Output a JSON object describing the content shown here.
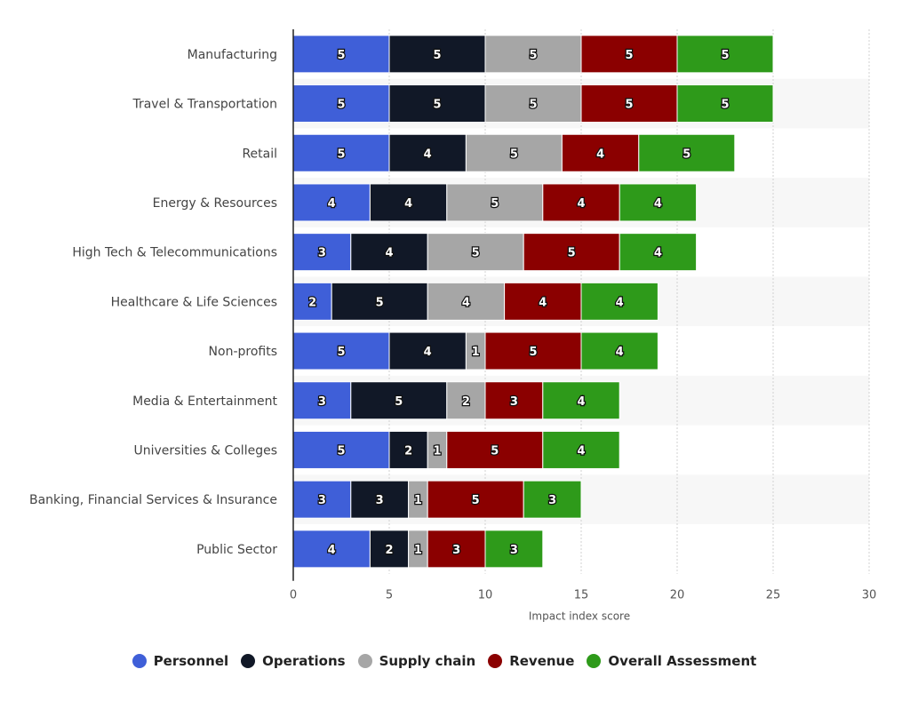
{
  "chart_data": {
    "type": "bar",
    "orientation": "horizontal",
    "stacked": true,
    "title": "",
    "xlabel": "Impact index score",
    "ylabel": "",
    "xlim": [
      0,
      30
    ],
    "xticks": [
      0,
      5,
      10,
      15,
      20,
      25,
      30
    ],
    "grid": true,
    "legend_position": "bottom",
    "categories": [
      "Manufacturing",
      "Travel & Transportation",
      "Retail",
      "Energy & Resources",
      "High Tech & Telecommunications",
      "Healthcare & Life Sciences",
      "Non-profits",
      "Media & Entertainment",
      "Universities & Colleges",
      "Banking, Financial Services & Insurance",
      "Public Sector"
    ],
    "series": [
      {
        "name": "Personnel",
        "color": "#3f5fd8",
        "values": [
          5,
          5,
          5,
          4,
          3,
          2,
          5,
          3,
          5,
          3,
          4
        ]
      },
      {
        "name": "Operations",
        "color": "#111827",
        "values": [
          5,
          5,
          4,
          4,
          4,
          5,
          4,
          5,
          2,
          3,
          2
        ]
      },
      {
        "name": "Supply chain",
        "color": "#a6a6a6",
        "values": [
          5,
          5,
          5,
          5,
          5,
          4,
          1,
          2,
          1,
          1,
          1
        ]
      },
      {
        "name": "Revenue",
        "color": "#8b0000",
        "values": [
          5,
          5,
          4,
          4,
          5,
          4,
          5,
          3,
          5,
          5,
          3
        ]
      },
      {
        "name": "Overall Assessment",
        "color": "#2e9a1a",
        "values": [
          5,
          5,
          5,
          4,
          4,
          4,
          4,
          4,
          4,
          3,
          3
        ]
      }
    ]
  }
}
